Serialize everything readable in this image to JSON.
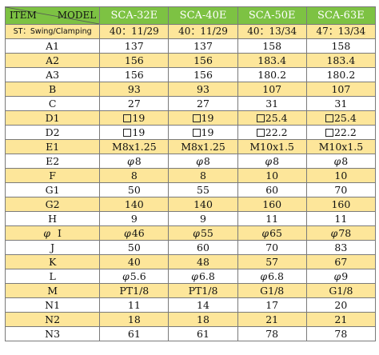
{
  "header": {
    "item_label": "ITEM",
    "model_label": "MODEL",
    "models": [
      "SCA-32E",
      "SCA-40E",
      "SCA-50E",
      "SCA-63E"
    ]
  },
  "swing_row": {
    "label": "ST：Swing/Clamping",
    "values": [
      "40：11/29",
      "40：11/29",
      "40：13/34",
      "47：13/34"
    ]
  },
  "rows": [
    {
      "item": "A1",
      "values": [
        "137",
        "137",
        "158",
        "158"
      ]
    },
    {
      "item": "A2",
      "values": [
        "156",
        "156",
        "183.4",
        "183.4"
      ]
    },
    {
      "item": "A3",
      "values": [
        "156",
        "156",
        "180.2",
        "180.2"
      ]
    },
    {
      "item": "B",
      "values": [
        "93",
        "93",
        "107",
        "107"
      ]
    },
    {
      "item": "C",
      "values": [
        "27",
        "27",
        "31",
        "31"
      ]
    },
    {
      "item": "D1",
      "box": true,
      "values": [
        "19",
        "19",
        "25.4",
        "25.4"
      ]
    },
    {
      "item": "D2",
      "box": true,
      "values": [
        "19",
        "19",
        "22.2",
        "22.2"
      ]
    },
    {
      "item": "E1",
      "values": [
        "M8x1.25",
        "M8x1.25",
        "M10x1.5",
        "M10x1.5"
      ]
    },
    {
      "item": "E2",
      "phi": true,
      "values": [
        "8",
        "8",
        "8",
        "8"
      ]
    },
    {
      "item": "F",
      "values": [
        "8",
        "8",
        "10",
        "10"
      ]
    },
    {
      "item": "G1",
      "values": [
        "50",
        "55",
        "60",
        "70"
      ]
    },
    {
      "item": "G2",
      "values": [
        "140",
        "140",
        "160",
        "160"
      ]
    },
    {
      "item": "H",
      "values": [
        "9",
        "9",
        "11",
        "11"
      ]
    },
    {
      "item": "I",
      "phi_item": true,
      "phi": true,
      "values": [
        "46",
        "55",
        "65",
        "78"
      ]
    },
    {
      "item": "J",
      "values": [
        "50",
        "60",
        "70",
        "83"
      ]
    },
    {
      "item": "K",
      "values": [
        "40",
        "48",
        "57",
        "67"
      ]
    },
    {
      "item": "L",
      "phi": true,
      "values": [
        "5.6",
        "6.8",
        "6.8",
        "9"
      ]
    },
    {
      "item": "M",
      "values": [
        "PT1/8",
        "PT1/8",
        "G1/8",
        "G1/8"
      ]
    },
    {
      "item": "N1",
      "values": [
        "11",
        "14",
        "17",
        "20"
      ]
    },
    {
      "item": "N2",
      "values": [
        "18",
        "18",
        "21",
        "21"
      ]
    },
    {
      "item": "N3",
      "values": [
        "61",
        "61",
        "78",
        "78"
      ]
    }
  ],
  "symbols": {
    "phi": "φ",
    "square_icon": "square-box-icon"
  },
  "colors": {
    "header_green": "#7dc243",
    "stripe_yellow": "#fde69a",
    "border_gray": "#7a7a7a"
  }
}
